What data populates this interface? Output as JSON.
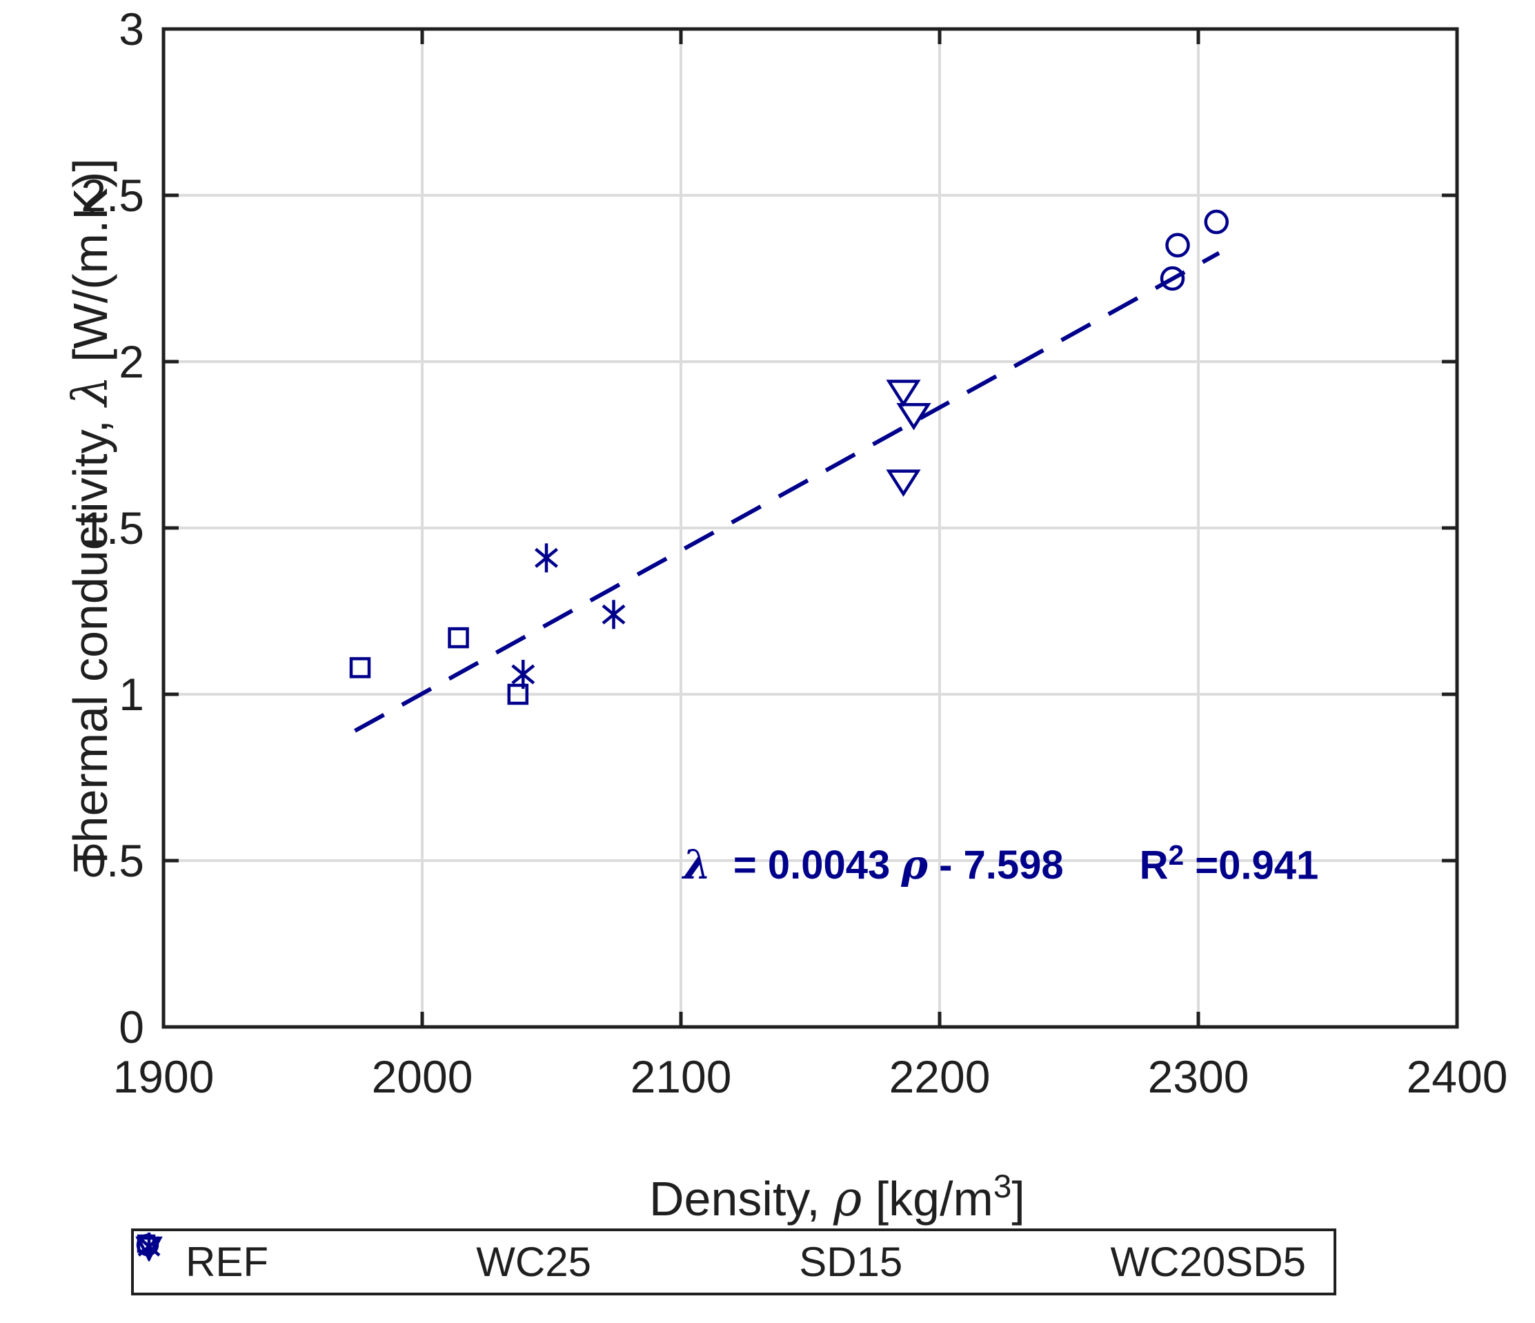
{
  "figure": {
    "background": "#ffffff",
    "accent_color": "#00008B",
    "axis_color": "#1f1f1f",
    "grid_color": "#dcdcdc"
  },
  "chart_data": {
    "type": "scatter",
    "title": "",
    "xlabel_prefix": "Density, ",
    "xlabel_symbol": "ρ",
    "xlabel_unit_pre": " [kg/m",
    "xlabel_unit_sup": "3",
    "xlabel_unit_post": "]",
    "ylabel_prefix": "Thermal conductivity, ",
    "ylabel_symbol": "λ",
    "ylabel_unit": " [W/(m.K)]",
    "xlim": [
      1900,
      2400
    ],
    "ylim": [
      0,
      3
    ],
    "xticks": [
      1900,
      2000,
      2100,
      2200,
      2300,
      2400
    ],
    "yticks": [
      0,
      0.5,
      1,
      1.5,
      2,
      2.5,
      3
    ],
    "xtick_labels": [
      "1900",
      "2000",
      "2100",
      "2200",
      "2300",
      "2400"
    ],
    "ytick_labels": [
      "0",
      "0.5",
      "1",
      "1.5",
      "2",
      "2.5",
      "3"
    ],
    "grid": true,
    "legend_position": "bottom",
    "series": [
      {
        "name": "REF",
        "marker": "circle",
        "points": [
          [
            2290,
            2.25
          ],
          [
            2292,
            2.35
          ],
          [
            2307,
            2.42
          ]
        ]
      },
      {
        "name": "WC25",
        "marker": "asterisk",
        "points": [
          [
            2039,
            1.06
          ],
          [
            2048,
            1.41
          ],
          [
            2074,
            1.24
          ]
        ]
      },
      {
        "name": "SD15",
        "marker": "triangle-down",
        "points": [
          [
            2186,
            1.91
          ],
          [
            2190,
            1.84
          ],
          [
            2186,
            1.64
          ]
        ]
      },
      {
        "name": "WC20SD5",
        "marker": "square",
        "points": [
          [
            1976,
            1.08
          ],
          [
            2014,
            1.17
          ],
          [
            2037,
            1.0
          ]
        ]
      }
    ],
    "trendline": {
      "style": "dashed",
      "slope": 0.0043,
      "intercept": -7.598,
      "x_start": 1974,
      "x_end": 2308
    },
    "annotation": {
      "eq_symbol": "λ",
      "eq_mid": "  = 0.0043 ",
      "eq_rho": "ρ",
      "eq_tail": " - 7.598",
      "r2_base": "R",
      "r2_sup": "2",
      "r2_val": " =0.941"
    },
    "legend": {
      "items": [
        {
          "label": "REF",
          "marker": "circle"
        },
        {
          "label": "WC25",
          "marker": "asterisk"
        },
        {
          "label": "SD15",
          "marker": "triangle-down"
        },
        {
          "label": "WC20SD5",
          "marker": "square"
        }
      ]
    }
  }
}
